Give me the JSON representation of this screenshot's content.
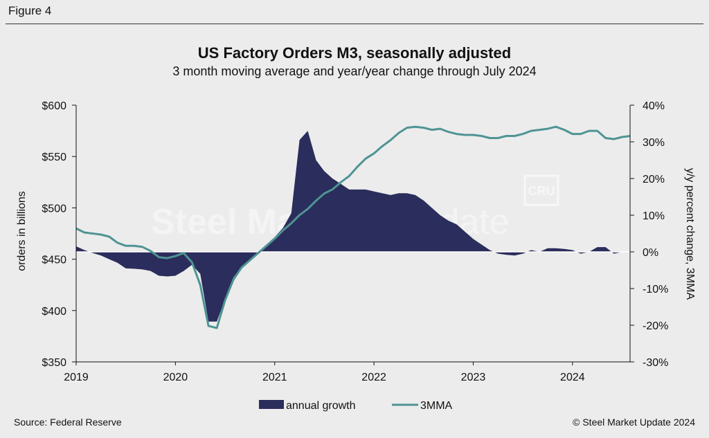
{
  "figure_label": "Figure 4",
  "source": "Source: Federal Reserve",
  "copyright": "© Steel Market Update 2024",
  "watermark": {
    "brand": "Steel Market Update",
    "cru": "CRU"
  },
  "colors": {
    "area": "#2b2d5c",
    "line": "#4f9494",
    "background": "#ececec"
  },
  "chart_data": {
    "type": "area",
    "title": "US Factory Orders M3, seasonally adjusted",
    "subtitle": "3 month moving average and year/year change through July 2024",
    "ylabel": "orders in billions",
    "y2label": "y/y percent change, 3MMA",
    "ylim": [
      350,
      600
    ],
    "y2lim": [
      -30,
      40
    ],
    "yticks": [
      "$600",
      "$550",
      "$500",
      "$450",
      "$400",
      "$350"
    ],
    "y2ticks": [
      "40%",
      "30%",
      "20%",
      "10%",
      "0%",
      "-10%",
      "-20%",
      "-30%"
    ],
    "xticks": [
      "2019",
      "2020",
      "2021",
      "2022",
      "2023",
      "2024"
    ],
    "xlim": [
      2019.0,
      2024.58
    ],
    "legend": [
      "annual growth",
      "3MMA"
    ],
    "legend_position": "bottom",
    "series": [
      {
        "name": "annual growth",
        "axis": "right",
        "x": [
          2019.0,
          2019.083,
          2019.167,
          2019.25,
          2019.333,
          2019.417,
          2019.5,
          2019.583,
          2019.667,
          2019.75,
          2019.833,
          2019.917,
          2020.0,
          2020.083,
          2020.167,
          2020.25,
          2020.333,
          2020.417,
          2020.5,
          2020.583,
          2020.667,
          2020.75,
          2020.833,
          2020.917,
          2021.0,
          2021.083,
          2021.167,
          2021.25,
          2021.333,
          2021.417,
          2021.5,
          2021.583,
          2021.667,
          2021.75,
          2021.833,
          2021.917,
          2022.0,
          2022.083,
          2022.167,
          2022.25,
          2022.333,
          2022.417,
          2022.5,
          2022.583,
          2022.667,
          2022.75,
          2022.833,
          2022.917,
          2023.0,
          2023.083,
          2023.167,
          2023.25,
          2023.333,
          2023.417,
          2023.5,
          2023.583,
          2023.667,
          2023.75,
          2023.833,
          2023.917,
          2024.0,
          2024.083,
          2024.167,
          2024.25,
          2024.333,
          2024.417,
          2024.5
        ],
        "values": [
          1.5,
          0.5,
          -0.3,
          -1.0,
          -2.0,
          -3.0,
          -4.5,
          -4.6,
          -4.8,
          -5.2,
          -6.5,
          -6.7,
          -6.5,
          -5.2,
          -3.5,
          -6.0,
          -19.0,
          -19.0,
          -13.0,
          -7.0,
          -4.0,
          -2.0,
          0.0,
          2.0,
          4.0,
          6.5,
          10.5,
          30.5,
          33.0,
          25.0,
          22.0,
          20.0,
          18.5,
          17.0,
          17.0,
          17.0,
          16.5,
          16.0,
          15.5,
          16.0,
          16.0,
          15.5,
          14.0,
          12.0,
          10.0,
          8.5,
          7.5,
          5.5,
          3.5,
          2.0,
          0.5,
          -0.5,
          -0.8,
          -1.0,
          -0.5,
          0.5,
          0.0,
          1.0,
          1.0,
          0.8,
          0.5,
          -0.5,
          0.0,
          1.3,
          1.3,
          -0.5,
          0.0
        ]
      },
      {
        "name": "3MMA",
        "axis": "left",
        "x": [
          2019.0,
          2019.083,
          2019.167,
          2019.25,
          2019.333,
          2019.417,
          2019.5,
          2019.583,
          2019.667,
          2019.75,
          2019.833,
          2019.917,
          2020.0,
          2020.083,
          2020.167,
          2020.25,
          2020.333,
          2020.417,
          2020.5,
          2020.583,
          2020.667,
          2020.75,
          2020.833,
          2020.917,
          2021.0,
          2021.083,
          2021.167,
          2021.25,
          2021.333,
          2021.417,
          2021.5,
          2021.583,
          2021.667,
          2021.75,
          2021.833,
          2021.917,
          2022.0,
          2022.083,
          2022.167,
          2022.25,
          2022.333,
          2022.417,
          2022.5,
          2022.583,
          2022.667,
          2022.75,
          2022.833,
          2022.917,
          2023.0,
          2023.083,
          2023.167,
          2023.25,
          2023.333,
          2023.417,
          2023.5,
          2023.583,
          2023.667,
          2023.75,
          2023.833,
          2023.917,
          2024.0,
          2024.083,
          2024.167,
          2024.25,
          2024.333,
          2024.417,
          2024.5,
          2024.583
        ],
        "values": [
          480,
          476,
          475,
          474,
          472,
          466,
          463,
          463,
          462,
          458,
          452,
          451,
          453,
          456,
          447,
          425,
          385,
          383,
          410,
          430,
          442,
          449,
          456,
          463,
          470,
          478,
          485,
          493,
          499,
          507,
          514,
          518,
          525,
          531,
          540,
          548,
          553,
          560,
          566,
          573,
          578,
          579,
          578,
          576,
          577,
          574,
          572,
          571,
          571,
          570,
          568,
          568,
          570,
          570,
          572,
          575,
          576,
          577,
          579,
          576,
          572,
          572,
          575,
          575,
          568,
          567,
          569,
          570
        ]
      }
    ]
  }
}
